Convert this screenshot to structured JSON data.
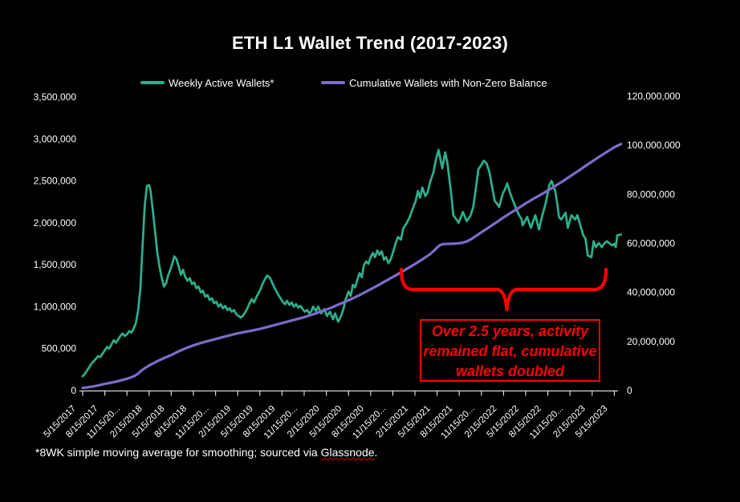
{
  "title": "ETH L1 Wallet Trend (2017-2023)",
  "colors": {
    "background": "#000000",
    "text": "#FFFFFF",
    "axis": "#D9D9D9",
    "weekly_series": "#2EAE8D",
    "cumulative_series": "#7C6BC7",
    "annotation_red": "#FF0000"
  },
  "legend": [
    {
      "label": "Weekly Active Wallets*",
      "color": "#2EAE8D"
    },
    {
      "label": "Cumulative Wallets with Non-Zero Balance",
      "color": "#7C6BC7"
    }
  ],
  "annotation": {
    "color": "#FF0000",
    "lines": [
      "Over 2.5 years, activity",
      "remained flat, cumulative",
      "wallets doubled"
    ]
  },
  "footnote": {
    "prefix": "*8WK simple moving average for smoothing; sourced via ",
    "link_text": "Glassnode",
    "suffix": "."
  },
  "chart_data": {
    "type": "line",
    "title": "ETH L1 Wallet Trend (2017-2023)",
    "x_unit": "months since 2017-05-15",
    "values_unit": "millions of wallets",
    "grid": false,
    "legend_position": "top",
    "x_tick_labels": [
      "5/15/2017",
      "8/15/2017",
      "11/15/20...",
      "2/15/2018",
      "5/15/2018",
      "8/15/2018",
      "11/15/20...",
      "2/15/2019",
      "5/15/2019",
      "8/15/2019",
      "11/15/20...",
      "2/15/2020",
      "5/15/2020",
      "8/15/2020",
      "11/15/20...",
      "2/15/2021",
      "5/15/2021",
      "8/15/2021",
      "11/15/20...",
      "2/15/2022",
      "5/15/2022",
      "8/15/2022",
      "11/15/20...",
      "2/15/2023",
      "5/15/2023"
    ],
    "left_axis": {
      "range": [
        0,
        3500000
      ],
      "tick_labels": [
        "0",
        "500,000",
        "1,000,000",
        "1,500,000",
        "2,000,000",
        "2,500,000",
        "3,000,000",
        "3,500,000"
      ]
    },
    "right_axis": {
      "range": [
        0,
        120000000
      ],
      "tick_labels": [
        "0",
        "20,000,000",
        "40,000,000",
        "60,000,000",
        "80,000,000",
        "100,000,000",
        "120,000,000"
      ]
    },
    "series": [
      {
        "name": "Weekly Active Wallets*",
        "axis": "left",
        "color": "#2EAE8D",
        "points": [
          [
            0,
            0.17
          ],
          [
            0.3,
            0.2
          ],
          [
            0.6,
            0.24
          ],
          [
            0.9,
            0.28
          ],
          [
            1.2,
            0.32
          ],
          [
            1.5,
            0.35
          ],
          [
            1.8,
            0.38
          ],
          [
            2.1,
            0.41
          ],
          [
            2.4,
            0.4
          ],
          [
            2.7,
            0.44
          ],
          [
            3.0,
            0.48
          ],
          [
            3.3,
            0.52
          ],
          [
            3.6,
            0.5
          ],
          [
            3.9,
            0.55
          ],
          [
            4.2,
            0.6
          ],
          [
            4.5,
            0.57
          ],
          [
            4.8,
            0.61
          ],
          [
            5.1,
            0.65
          ],
          [
            5.4,
            0.68
          ],
          [
            5.7,
            0.65
          ],
          [
            6.0,
            0.67
          ],
          [
            6.3,
            0.71
          ],
          [
            6.6,
            0.69
          ],
          [
            6.9,
            0.74
          ],
          [
            7.2,
            0.8
          ],
          [
            7.5,
            0.95
          ],
          [
            7.8,
            1.2
          ],
          [
            8.1,
            1.7
          ],
          [
            8.4,
            2.2
          ],
          [
            8.7,
            2.44
          ],
          [
            9.0,
            2.45
          ],
          [
            9.2,
            2.38
          ],
          [
            9.5,
            2.15
          ],
          [
            9.8,
            1.9
          ],
          [
            10.1,
            1.65
          ],
          [
            10.4,
            1.48
          ],
          [
            10.7,
            1.35
          ],
          [
            11.0,
            1.24
          ],
          [
            11.3,
            1.28
          ],
          [
            11.6,
            1.38
          ],
          [
            11.9,
            1.45
          ],
          [
            12.2,
            1.53
          ],
          [
            12.4,
            1.6
          ],
          [
            12.7,
            1.57
          ],
          [
            13.0,
            1.48
          ],
          [
            13.3,
            1.38
          ],
          [
            13.6,
            1.44
          ],
          [
            13.9,
            1.35
          ],
          [
            14.2,
            1.31
          ],
          [
            14.5,
            1.34
          ],
          [
            14.8,
            1.27
          ],
          [
            15.1,
            1.29
          ],
          [
            15.4,
            1.22
          ],
          [
            15.7,
            1.24
          ],
          [
            16.0,
            1.17
          ],
          [
            16.3,
            1.19
          ],
          [
            16.6,
            1.12
          ],
          [
            16.9,
            1.14
          ],
          [
            17.2,
            1.08
          ],
          [
            17.5,
            1.1
          ],
          [
            17.8,
            1.04
          ],
          [
            18.1,
            1.06
          ],
          [
            18.4,
            1.0
          ],
          [
            18.7,
            1.03
          ],
          [
            19.0,
            0.98
          ],
          [
            19.3,
            1.01
          ],
          [
            19.6,
            0.96
          ],
          [
            19.9,
            0.98
          ],
          [
            20.2,
            0.94
          ],
          [
            20.5,
            0.96
          ],
          [
            20.8,
            0.91
          ],
          [
            21.1,
            0.89
          ],
          [
            21.4,
            0.87
          ],
          [
            21.7,
            0.89
          ],
          [
            22.0,
            0.93
          ],
          [
            22.3,
            0.98
          ],
          [
            22.6,
            1.04
          ],
          [
            22.9,
            1.09
          ],
          [
            23.2,
            1.05
          ],
          [
            23.5,
            1.11
          ],
          [
            23.8,
            1.16
          ],
          [
            24.1,
            1.21
          ],
          [
            24.4,
            1.28
          ],
          [
            24.7,
            1.33
          ],
          [
            25.0,
            1.37
          ],
          [
            25.3,
            1.35
          ],
          [
            25.6,
            1.3
          ],
          [
            25.9,
            1.24
          ],
          [
            26.2,
            1.19
          ],
          [
            26.5,
            1.14
          ],
          [
            26.8,
            1.1
          ],
          [
            27.1,
            1.06
          ],
          [
            27.4,
            1.03
          ],
          [
            27.7,
            1.07
          ],
          [
            28.0,
            1.02
          ],
          [
            28.3,
            1.05
          ],
          [
            28.6,
            1.0
          ],
          [
            28.9,
            1.03
          ],
          [
            29.2,
            0.99
          ],
          [
            29.5,
            1.01
          ],
          [
            29.8,
            0.97
          ],
          [
            30.1,
            0.94
          ],
          [
            30.4,
            0.96
          ],
          [
            30.7,
            0.92
          ],
          [
            31.0,
            0.95
          ],
          [
            31.2,
            1.0
          ],
          [
            31.6,
            0.95
          ],
          [
            31.9,
            1.0
          ],
          [
            32.3,
            0.92
          ],
          [
            32.7,
            0.97
          ],
          [
            33.1,
            0.89
          ],
          [
            33.5,
            0.94
          ],
          [
            33.9,
            0.85
          ],
          [
            34.2,
            0.92
          ],
          [
            34.6,
            0.82
          ],
          [
            35.0,
            0.89
          ],
          [
            35.3,
            0.97
          ],
          [
            35.6,
            1.08
          ],
          [
            36.0,
            1.18
          ],
          [
            36.3,
            1.13
          ],
          [
            36.6,
            1.26
          ],
          [
            36.9,
            1.23
          ],
          [
            37.2,
            1.32
          ],
          [
            37.5,
            1.4
          ],
          [
            37.8,
            1.35
          ],
          [
            38.1,
            1.5
          ],
          [
            38.4,
            1.54
          ],
          [
            38.7,
            1.51
          ],
          [
            39.0,
            1.59
          ],
          [
            39.3,
            1.64
          ],
          [
            39.6,
            1.59
          ],
          [
            39.9,
            1.67
          ],
          [
            40.2,
            1.62
          ],
          [
            40.5,
            1.66
          ],
          [
            40.8,
            1.56
          ],
          [
            41.1,
            1.59
          ],
          [
            41.4,
            1.52
          ],
          [
            41.7,
            1.56
          ],
          [
            42.0,
            1.64
          ],
          [
            42.4,
            1.76
          ],
          [
            42.7,
            1.83
          ],
          [
            43.1,
            1.8
          ],
          [
            43.4,
            1.93
          ],
          [
            43.9,
            2.0
          ],
          [
            44.3,
            2.07
          ],
          [
            44.7,
            2.17
          ],
          [
            45.1,
            2.26
          ],
          [
            45.4,
            2.38
          ],
          [
            45.7,
            2.3
          ],
          [
            46.0,
            2.42
          ],
          [
            46.4,
            2.32
          ],
          [
            46.7,
            2.36
          ],
          [
            47.1,
            2.5
          ],
          [
            47.5,
            2.6
          ],
          [
            47.8,
            2.74
          ],
          [
            48.2,
            2.87
          ],
          [
            48.7,
            2.65
          ],
          [
            49.1,
            2.84
          ],
          [
            49.4,
            2.71
          ],
          [
            49.9,
            2.35
          ],
          [
            50.2,
            2.09
          ],
          [
            50.7,
            2.03
          ],
          [
            50.9,
            2.0
          ],
          [
            51.5,
            2.13
          ],
          [
            52.0,
            2.02
          ],
          [
            52.5,
            2.08
          ],
          [
            52.9,
            2.19
          ],
          [
            53.3,
            2.45
          ],
          [
            53.6,
            2.64
          ],
          [
            54.0,
            2.69
          ],
          [
            54.3,
            2.74
          ],
          [
            54.7,
            2.71
          ],
          [
            55.1,
            2.6
          ],
          [
            55.4,
            2.45
          ],
          [
            55.8,
            2.26
          ],
          [
            56.1,
            2.23
          ],
          [
            56.4,
            2.19
          ],
          [
            56.9,
            2.35
          ],
          [
            57.2,
            2.4
          ],
          [
            57.5,
            2.47
          ],
          [
            57.9,
            2.35
          ],
          [
            58.3,
            2.26
          ],
          [
            58.7,
            2.17
          ],
          [
            59.1,
            2.09
          ],
          [
            59.4,
            2.05
          ],
          [
            59.6,
            1.97
          ],
          [
            60.2,
            2.07
          ],
          [
            60.7,
            1.94
          ],
          [
            61.3,
            2.09
          ],
          [
            61.8,
            1.92
          ],
          [
            62.2,
            2.07
          ],
          [
            62.7,
            2.23
          ],
          [
            63.2,
            2.45
          ],
          [
            63.5,
            2.5
          ],
          [
            64.0,
            2.38
          ],
          [
            64.3,
            2.21
          ],
          [
            64.5,
            2.07
          ],
          [
            64.8,
            2.04
          ],
          [
            65.4,
            2.12
          ],
          [
            65.7,
            1.94
          ],
          [
            66.2,
            2.09
          ],
          [
            66.7,
            2.04
          ],
          [
            67.0,
            2.09
          ],
          [
            67.4,
            1.97
          ],
          [
            67.8,
            1.85
          ],
          [
            68.1,
            1.81
          ],
          [
            68.4,
            1.61
          ],
          [
            68.9,
            1.59
          ],
          [
            69.2,
            1.78
          ],
          [
            69.5,
            1.71
          ],
          [
            69.9,
            1.76
          ],
          [
            70.3,
            1.71
          ],
          [
            70.6,
            1.75
          ],
          [
            71.0,
            1.78
          ],
          [
            71.3,
            1.76
          ],
          [
            71.7,
            1.73
          ],
          [
            72.0,
            1.75
          ],
          [
            72.2,
            1.71
          ],
          [
            72.4,
            1.85
          ],
          [
            72.9,
            1.86
          ]
        ]
      },
      {
        "name": "Cumulative Wallets with Non-Zero Balance",
        "axis": "right",
        "color": "#7C6BC7",
        "points": [
          [
            0,
            1.0
          ],
          [
            1.5,
            1.7
          ],
          [
            3,
            2.7
          ],
          [
            4.5,
            3.6
          ],
          [
            6,
            4.8
          ],
          [
            7,
            5.9
          ],
          [
            7.5,
            6.9
          ],
          [
            8,
            8.2
          ],
          [
            8.5,
            9.3
          ],
          [
            9,
            10.2
          ],
          [
            10,
            11.8
          ],
          [
            11,
            13.2
          ],
          [
            12,
            14.5
          ],
          [
            13,
            16.0
          ],
          [
            14,
            17.3
          ],
          [
            15,
            18.4
          ],
          [
            16,
            19.4
          ],
          [
            17,
            20.2
          ],
          [
            18,
            21.0
          ],
          [
            19,
            21.8
          ],
          [
            20,
            22.6
          ],
          [
            21,
            23.3
          ],
          [
            22,
            23.9
          ],
          [
            23,
            24.5
          ],
          [
            24,
            25.1
          ],
          [
            25,
            25.9
          ],
          [
            26,
            26.7
          ],
          [
            27,
            27.5
          ],
          [
            28,
            28.3
          ],
          [
            29,
            29.1
          ],
          [
            30,
            29.9
          ],
          [
            31,
            30.9
          ],
          [
            32,
            31.9
          ],
          [
            33,
            33.0
          ],
          [
            34,
            34.2
          ],
          [
            35,
            35.5
          ],
          [
            36,
            36.8
          ],
          [
            37,
            38.2
          ],
          [
            38,
            39.7
          ],
          [
            39,
            41.3
          ],
          [
            40,
            42.9
          ],
          [
            41,
            44.6
          ],
          [
            42,
            46.3
          ],
          [
            43,
            48.0
          ],
          [
            44,
            49.8
          ],
          [
            45,
            51.6
          ],
          [
            46,
            53.5
          ],
          [
            47,
            55.5
          ],
          [
            47.5,
            56.8
          ],
          [
            48,
            58.3
          ],
          [
            48.4,
            59.3
          ],
          [
            48.8,
            59.7
          ],
          [
            49.5,
            59.8
          ],
          [
            50.5,
            59.9
          ],
          [
            51.5,
            60.3
          ],
          [
            52,
            60.8
          ],
          [
            52.5,
            61.5
          ],
          [
            53,
            62.5
          ],
          [
            54,
            64.5
          ],
          [
            55,
            66.5
          ],
          [
            56,
            68.5
          ],
          [
            57,
            70.6
          ],
          [
            58,
            72.5
          ],
          [
            59,
            74.4
          ],
          [
            60,
            76.3
          ],
          [
            61,
            78.1
          ],
          [
            62,
            79.8
          ],
          [
            63,
            81.5
          ],
          [
            64,
            83.4
          ],
          [
            65,
            85.3
          ],
          [
            66,
            87.3
          ],
          [
            67,
            89.3
          ],
          [
            68,
            91.4
          ],
          [
            69,
            93.4
          ],
          [
            70,
            95.4
          ],
          [
            71,
            97.3
          ],
          [
            72,
            99.2
          ],
          [
            72.9,
            100.5
          ]
        ]
      }
    ]
  }
}
